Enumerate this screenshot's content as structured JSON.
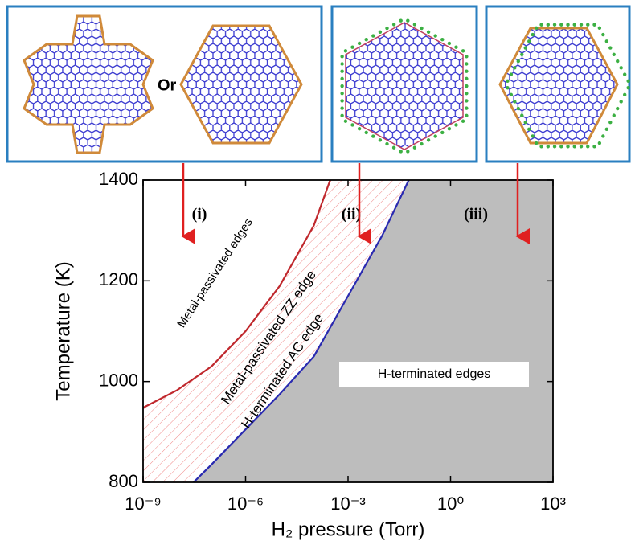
{
  "top_panels": {
    "connector": "Or"
  },
  "chart_data": {
    "type": "line",
    "xlabel": "H₂ pressure (Torr)",
    "ylabel": "Temperature (K)",
    "xscale": "log",
    "xlim": [
      1e-09,
      1000
    ],
    "ylim": [
      800,
      1400
    ],
    "xticks": [
      {
        "value": 1e-09,
        "label": "10⁻⁹"
      },
      {
        "value": 1e-06,
        "label": "10⁻⁶"
      },
      {
        "value": 0.001,
        "label": "10⁻³"
      },
      {
        "value": 1,
        "label": "10⁰"
      },
      {
        "value": 1000,
        "label": "10³"
      }
    ],
    "yticks": [
      800,
      1000,
      1200,
      1400
    ],
    "series": [
      {
        "color": "#c0282d",
        "x": [
          1e-09,
          1e-08,
          1e-07,
          1e-06,
          1e-05,
          0.0001,
          0.0003
        ],
        "values": [
          948,
          983,
          1030,
          1100,
          1190,
          1310,
          1400
        ]
      },
      {
        "color": "#2a2ab0",
        "x": [
          3e-08,
          1e-07,
          1e-06,
          1e-05,
          0.0001,
          0.001,
          0.01,
          0.06
        ],
        "values": [
          800,
          835,
          905,
          975,
          1050,
          1170,
          1290,
          1400
        ]
      }
    ],
    "annotations": [
      "(i)",
      "(ii)",
      "(iii)",
      "Metal-passivated edges",
      "Metal-passivated ZZ edge",
      "H-terminated AC edge",
      "H-terminated edges"
    ]
  }
}
